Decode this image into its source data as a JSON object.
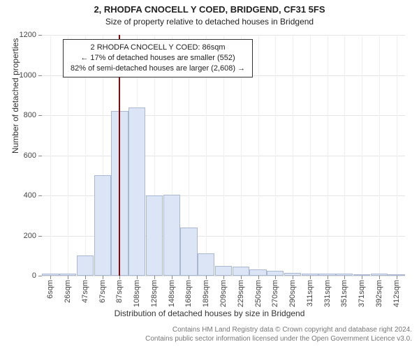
{
  "title_line1": "2, RHODFA CNOCELL Y COED, BRIDGEND, CF31 5FS",
  "title_line2": "Size of property relative to detached houses in Bridgend",
  "chart": {
    "type": "histogram",
    "ylabel": "Number of detached properties",
    "xlabel": "Distribution of detached houses by size in Bridgend",
    "ylim": [
      0,
      1200
    ],
    "ytick_step": 200,
    "yticks": [
      0,
      200,
      400,
      600,
      800,
      1000,
      1200
    ],
    "background_color": "#ffffff",
    "grid_color": "#e5e5e5",
    "bar_fill": "#dbe5f6",
    "bar_edge": "#aab7d1",
    "marker_color": "#850a0a",
    "label_fontsize": 12,
    "tick_fontsize": 11,
    "categories": [
      "6sqm",
      "26sqm",
      "47sqm",
      "67sqm",
      "87sqm",
      "108sqm",
      "128sqm",
      "148sqm",
      "168sqm",
      "189sqm",
      "209sqm",
      "229sqm",
      "250sqm",
      "270sqm",
      "290sqm",
      "311sqm",
      "331sqm",
      "351sqm",
      "371sqm",
      "392sqm",
      "412sqm"
    ],
    "values": [
      10,
      12,
      100,
      500,
      820,
      840,
      400,
      405,
      240,
      110,
      50,
      45,
      30,
      25,
      15,
      12,
      10,
      10,
      8,
      10,
      5
    ],
    "marker_index": 3.95,
    "bar_width_ratio": 0.98
  },
  "annotation": {
    "line1": "2 RHODFA CNOCELL Y COED: 86sqm",
    "line2": "← 17% of detached houses are smaller (552)",
    "line3": "82% of semi-detached houses are larger (2,608) →"
  },
  "footer": {
    "line1": "Contains HM Land Registry data © Crown copyright and database right 2024.",
    "line2": "Contains public sector information licensed under the Open Government Licence v3.0."
  }
}
